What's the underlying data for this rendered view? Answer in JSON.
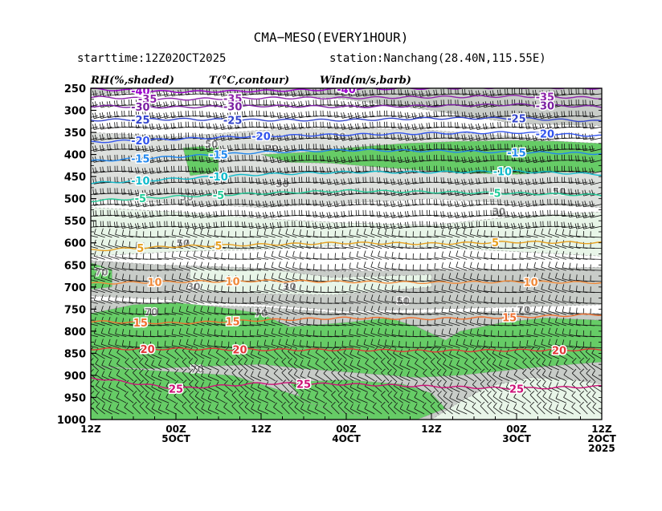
{
  "title": "CMA−MESO(EVERY1HOUR)",
  "starttime": "starttime:12Z02OCT2025",
  "station": "station:Nanchang(28.40N,115.55E)",
  "legend_labels": {
    "rh": "RH(%,shaded)",
    "temp": "T(°C,contour)",
    "wind": "Wind(m/s,barb)"
  },
  "colors": {
    "rh_90": "#66cc66",
    "rh_70": "#c8ccc8",
    "rh_50": "#dde0dd",
    "rh_30": "#e8f5e8",
    "t_m40": "#9900cc",
    "t_m35": "#8e24aa",
    "t_m30": "#7b1fa2",
    "t_m25": "#3344cc",
    "t_m20": "#3355ee",
    "t_m15": "#2288ee",
    "t_m10": "#11bbcc",
    "t_m5": "#22cc99",
    "t_5": "#e6a020",
    "t_10": "#f08a3a",
    "t_15": "#f07030",
    "t_20": "#e03838",
    "t_25": "#cc1177"
  },
  "chart_data": {
    "type": "time-pressure cross-section",
    "y_axis": {
      "unit": "hPa",
      "ticks": [
        250,
        300,
        350,
        400,
        450,
        500,
        550,
        600,
        650,
        700,
        750,
        800,
        850,
        900,
        950,
        1000
      ],
      "range": [
        1000,
        250
      ]
    },
    "x_axis": {
      "ticks": [
        {
          "hours": 0,
          "lines": [
            "12Z"
          ]
        },
        {
          "hours": 12,
          "lines": [
            "00Z",
            "5OCT"
          ]
        },
        {
          "hours": 24,
          "lines": [
            "12Z"
          ]
        },
        {
          "hours": 36,
          "lines": [
            "00Z",
            "4OCT"
          ]
        },
        {
          "hours": 48,
          "lines": [
            "12Z"
          ]
        },
        {
          "hours": 60,
          "lines": [
            "00Z",
            "3OCT"
          ]
        },
        {
          "hours": 72,
          "lines": [
            "12Z",
            "2OCT",
            "2025"
          ]
        }
      ],
      "range_hours": [
        0,
        72
      ]
    },
    "temperature_contours": [
      {
        "value": -40,
        "label": "-40",
        "points": [
          [
            0,
            252
          ],
          [
            12,
            258
          ],
          [
            24,
            256
          ],
          [
            36,
            252
          ],
          [
            48,
            250
          ],
          [
            60,
            248
          ],
          [
            72,
            250
          ]
        ],
        "labels_at": [
          7,
          36
        ]
      },
      {
        "value": -35,
        "label": "-35",
        "points": [
          [
            0,
            270
          ],
          [
            12,
            275
          ],
          [
            24,
            272
          ],
          [
            36,
            272
          ],
          [
            48,
            270
          ],
          [
            60,
            268
          ],
          [
            72,
            272
          ]
        ],
        "labels_at": [
          8,
          20,
          64
        ]
      },
      {
        "value": -30,
        "label": "-30",
        "points": [
          [
            0,
            290
          ],
          [
            12,
            293
          ],
          [
            24,
            290
          ],
          [
            36,
            292
          ],
          [
            48,
            290
          ],
          [
            60,
            287
          ],
          [
            72,
            292
          ]
        ],
        "labels_at": [
          7,
          20,
          64
        ]
      },
      {
        "value": -25,
        "label": "-25",
        "points": [
          [
            0,
            322
          ],
          [
            12,
            320
          ],
          [
            24,
            322
          ],
          [
            36,
            322
          ],
          [
            48,
            318
          ],
          [
            60,
            318
          ],
          [
            72,
            325
          ]
        ],
        "labels_at": [
          7,
          20,
          60
        ]
      },
      {
        "value": -20,
        "label": "-20",
        "points": [
          [
            0,
            372
          ],
          [
            12,
            365
          ],
          [
            24,
            358
          ],
          [
            36,
            355
          ],
          [
            48,
            352
          ],
          [
            60,
            350
          ],
          [
            72,
            358
          ]
        ],
        "labels_at": [
          7,
          24,
          64
        ]
      },
      {
        "value": -15,
        "label": "-15",
        "points": [
          [
            0,
            415
          ],
          [
            12,
            405
          ],
          [
            24,
            395
          ],
          [
            36,
            390
          ],
          [
            48,
            392
          ],
          [
            60,
            395
          ],
          [
            72,
            398
          ]
        ],
        "labels_at": [
          7,
          18,
          60
        ]
      },
      {
        "value": -10,
        "label": "-10",
        "points": [
          [
            0,
            465
          ],
          [
            12,
            455
          ],
          [
            24,
            445
          ],
          [
            36,
            440
          ],
          [
            48,
            440
          ],
          [
            60,
            438
          ],
          [
            72,
            445
          ]
        ],
        "labels_at": [
          7,
          18,
          58
        ]
      },
      {
        "value": -5,
        "label": "-5",
        "points": [
          [
            0,
            505
          ],
          [
            12,
            495
          ],
          [
            24,
            488
          ],
          [
            36,
            482
          ],
          [
            48,
            485
          ],
          [
            60,
            488
          ],
          [
            72,
            492
          ]
        ],
        "labels_at": [
          7,
          18,
          57
        ]
      },
      {
        "value": 5,
        "label": "5",
        "points": [
          [
            0,
            617
          ],
          [
            12,
            608
          ],
          [
            24,
            604
          ],
          [
            36,
            600
          ],
          [
            48,
            602
          ],
          [
            60,
            598
          ],
          [
            72,
            600
          ]
        ],
        "labels_at": [
          7,
          18,
          57
        ]
      },
      {
        "value": 10,
        "label": "10",
        "points": [
          [
            0,
            692
          ],
          [
            12,
            688
          ],
          [
            24,
            686
          ],
          [
            36,
            688
          ],
          [
            48,
            690
          ],
          [
            60,
            688
          ],
          [
            72,
            690
          ]
        ],
        "labels_at": [
          9,
          20,
          62
        ]
      },
      {
        "value": 15,
        "label": "15",
        "points": [
          [
            0,
            778
          ],
          [
            12,
            782
          ],
          [
            24,
            775
          ],
          [
            36,
            770
          ],
          [
            48,
            772
          ],
          [
            60,
            768
          ],
          [
            72,
            762
          ]
        ],
        "labels_at": [
          7,
          20,
          59
        ]
      },
      {
        "value": 20,
        "label": "20",
        "points": [
          [
            0,
            840
          ],
          [
            12,
            840
          ],
          [
            24,
            842
          ],
          [
            36,
            842
          ],
          [
            48,
            845
          ],
          [
            60,
            843
          ],
          [
            72,
            842
          ]
        ],
        "labels_at": [
          8,
          21,
          66
        ]
      },
      {
        "value": 25,
        "label": "25",
        "points": [
          [
            0,
            905
          ],
          [
            12,
            930
          ],
          [
            24,
            918
          ],
          [
            36,
            920
          ],
          [
            48,
            925
          ],
          [
            60,
            930
          ],
          [
            72,
            925
          ]
        ],
        "labels_at": [
          12,
          30,
          60
        ]
      }
    ],
    "rh_labels": [
      {
        "value": 70,
        "h": 1.5,
        "p": 665
      },
      {
        "value": 50,
        "h": 13,
        "p": 600
      },
      {
        "value": 70,
        "h": 8.5,
        "p": 755
      },
      {
        "value": 50,
        "h": 13.5,
        "p": 495
      },
      {
        "value": 50,
        "h": 17,
        "p": 375
      },
      {
        "value": 30,
        "h": 14.5,
        "p": 698
      },
      {
        "value": 70,
        "h": 15,
        "p": 885
      },
      {
        "value": 70,
        "h": 25.5,
        "p": 385
      },
      {
        "value": 50,
        "h": 27,
        "p": 465
      },
      {
        "value": 70,
        "h": 24,
        "p": 758
      },
      {
        "value": 30,
        "h": 28,
        "p": 698
      },
      {
        "value": 30,
        "h": 35,
        "p": 358
      },
      {
        "value": 50,
        "h": 44,
        "p": 730
      },
      {
        "value": 30,
        "h": 57.5,
        "p": 528
      },
      {
        "value": 70,
        "h": 61,
        "p": 750
      },
      {
        "value": 50,
        "h": 66,
        "p": 482
      }
    ],
    "wind_barbs": "uniform barbs at every hour and 25 hPa level; westerly to north-westerly aloft, weaker south-westerly near surface"
  }
}
